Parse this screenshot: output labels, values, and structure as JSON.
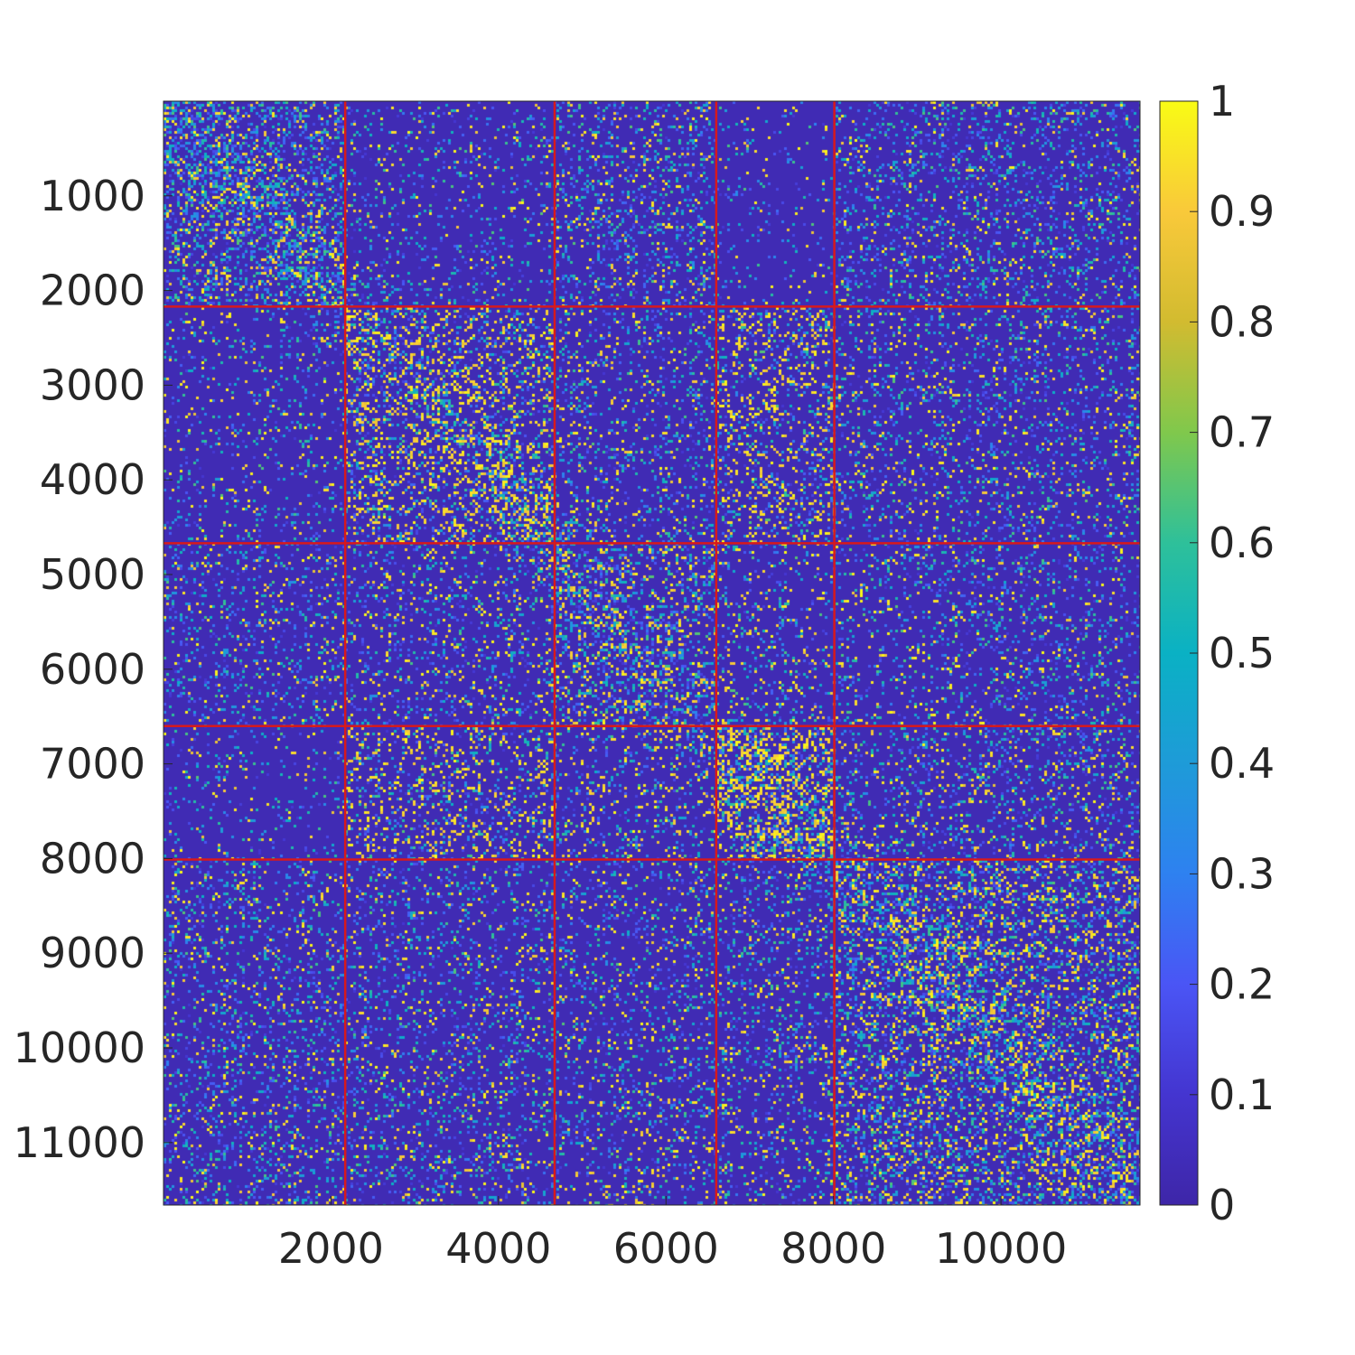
{
  "chart_data": {
    "type": "heatmap",
    "title": "",
    "xlabel": "",
    "ylabel": "",
    "matrix_size": 11660,
    "xlim": [
      1,
      11660
    ],
    "ylim": [
      1,
      11660
    ],
    "y_direction": "reverse",
    "x_ticks": [
      2000,
      4000,
      6000,
      8000,
      10000
    ],
    "x_tick_labels": [
      "2000",
      "4000",
      "6000",
      "8000",
      "10000"
    ],
    "y_ticks": [
      1000,
      2000,
      3000,
      4000,
      5000,
      6000,
      7000,
      8000,
      9000,
      10000,
      11000
    ],
    "y_tick_labels": [
      "1000",
      "2000",
      "3000",
      "4000",
      "5000",
      "6000",
      "7000",
      "8000",
      "9000",
      "10000",
      "11000"
    ],
    "block_boundaries": [
      2170,
      4670,
      6600,
      8010
    ],
    "block_boundary_color": "#d7191c",
    "colormap": "parula",
    "background_value": 0.03,
    "clim": [
      0,
      1
    ],
    "colorbar_ticks": [
      0,
      0.1,
      0.2,
      0.3,
      0.4,
      0.5,
      0.6,
      0.7,
      0.8,
      0.9,
      1
    ],
    "colorbar_tick_labels": [
      "0",
      "0.1",
      "0.2",
      "0.3",
      "0.4",
      "0.5",
      "0.6",
      "0.7",
      "0.8",
      "0.9",
      "1"
    ],
    "block_density": [
      [
        0.3,
        0.1,
        0.2,
        0.06,
        0.18
      ],
      [
        0.1,
        0.26,
        0.16,
        0.24,
        0.16
      ],
      [
        0.16,
        0.16,
        0.26,
        0.14,
        0.15
      ],
      [
        0.08,
        0.22,
        0.17,
        0.36,
        0.18
      ],
      [
        0.18,
        0.16,
        0.15,
        0.16,
        0.3
      ]
    ],
    "block_high_fraction": [
      [
        0.25,
        0.25,
        0.25,
        0.25,
        0.2
      ],
      [
        0.25,
        0.5,
        0.3,
        0.5,
        0.3
      ],
      [
        0.25,
        0.3,
        0.35,
        0.35,
        0.3
      ],
      [
        0.25,
        0.5,
        0.35,
        0.55,
        0.3
      ],
      [
        0.25,
        0.3,
        0.3,
        0.3,
        0.35
      ]
    ]
  }
}
